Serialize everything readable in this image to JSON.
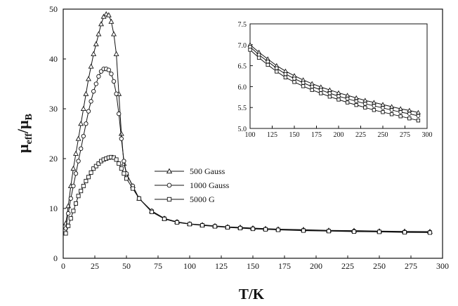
{
  "chart_data": [
    {
      "type": "line",
      "xlabel": "T/K",
      "ylabel_main": "μ",
      "ylabel_sub1": "eff",
      "ylabel_sep": "/μ",
      "ylabel_sub2": "B",
      "xlim": [
        0,
        300
      ],
      "ylim": [
        0,
        50
      ],
      "xticks": [
        "0",
        "25",
        "50",
        "75",
        "100",
        "125",
        "150",
        "175",
        "200",
        "225",
        "250",
        "275",
        "300"
      ],
      "yticks": [
        "0",
        "10",
        "20",
        "30",
        "40",
        "50"
      ],
      "series": [
        {
          "name": "500 Gauss",
          "marker": "triangle",
          "points": [
            [
              2,
              7
            ],
            [
              4,
              10.5
            ],
            [
              6,
              14.5
            ],
            [
              8,
              18
            ],
            [
              10,
              21
            ],
            [
              12,
              24
            ],
            [
              14,
              27
            ],
            [
              16,
              30
            ],
            [
              18,
              33
            ],
            [
              20,
              36
            ],
            [
              22,
              38.5
            ],
            [
              24,
              41
            ],
            [
              26,
              43
            ],
            [
              28,
              45
            ],
            [
              30,
              47
            ],
            [
              32,
              48.5
            ],
            [
              34,
              49
            ],
            [
              36,
              48.8
            ],
            [
              38,
              47.5
            ],
            [
              40,
              45
            ],
            [
              42,
              41
            ],
            [
              44,
              33
            ],
            [
              46,
              25
            ],
            [
              48,
              19
            ],
            [
              50,
              17
            ],
            [
              55,
              14.5
            ],
            [
              60,
              12
            ],
            [
              70,
              9.5
            ],
            [
              80,
              8
            ],
            [
              90,
              7.3
            ],
            [
              100,
              6.9
            ],
            [
              110,
              6.7
            ],
            [
              120,
              6.5
            ],
            [
              130,
              6.3
            ],
            [
              140,
              6.2
            ],
            [
              150,
              6.05
            ],
            [
              160,
              5.95
            ],
            [
              170,
              5.85
            ],
            [
              190,
              5.75
            ],
            [
              210,
              5.6
            ],
            [
              230,
              5.55
            ],
            [
              250,
              5.45
            ],
            [
              270,
              5.4
            ],
            [
              290,
              5.35
            ]
          ]
        },
        {
          "name": "1000 Gauss",
          "marker": "circle",
          "points": [
            [
              2,
              6
            ],
            [
              4,
              9
            ],
            [
              6,
              12
            ],
            [
              8,
              14.5
            ],
            [
              10,
              17
            ],
            [
              12,
              19.5
            ],
            [
              14,
              22
            ],
            [
              16,
              24.5
            ],
            [
              18,
              27
            ],
            [
              20,
              29.5
            ],
            [
              22,
              31.5
            ],
            [
              24,
              33.5
            ],
            [
              26,
              35
            ],
            [
              28,
              36.5
            ],
            [
              30,
              37.5
            ],
            [
              32,
              38
            ],
            [
              34,
              38
            ],
            [
              36,
              37.8
            ],
            [
              38,
              37
            ],
            [
              40,
              35.5
            ],
            [
              42,
              33
            ],
            [
              44,
              29
            ],
            [
              46,
              24
            ],
            [
              48,
              19.5
            ],
            [
              50,
              17
            ],
            [
              55,
              14.5
            ],
            [
              60,
              12
            ],
            [
              70,
              9.5
            ],
            [
              80,
              8
            ],
            [
              90,
              7.3
            ],
            [
              100,
              6.9
            ],
            [
              110,
              6.65
            ],
            [
              120,
              6.45
            ],
            [
              130,
              6.25
            ],
            [
              140,
              6.1
            ],
            [
              150,
              5.95
            ],
            [
              160,
              5.85
            ],
            [
              170,
              5.75
            ],
            [
              190,
              5.65
            ],
            [
              210,
              5.5
            ],
            [
              230,
              5.45
            ],
            [
              250,
              5.35
            ],
            [
              270,
              5.3
            ],
            [
              290,
              5.25
            ]
          ]
        },
        {
          "name": "5000 G",
          "marker": "square",
          "points": [
            [
              2,
              5
            ],
            [
              4,
              6.5
            ],
            [
              6,
              8
            ],
            [
              8,
              9.5
            ],
            [
              10,
              11
            ],
            [
              12,
              12.5
            ],
            [
              14,
              13.5
            ],
            [
              16,
              14.5
            ],
            [
              18,
              15.5
            ],
            [
              20,
              16.3
            ],
            [
              22,
              17.2
            ],
            [
              24,
              18
            ],
            [
              26,
              18.5
            ],
            [
              28,
              19
            ],
            [
              30,
              19.5
            ],
            [
              32,
              19.8
            ],
            [
              34,
              20
            ],
            [
              36,
              20.2
            ],
            [
              38,
              20.3
            ],
            [
              40,
              20.2
            ],
            [
              42,
              19.8
            ],
            [
              44,
              19
            ],
            [
              46,
              18
            ],
            [
              48,
              17
            ],
            [
              50,
              16
            ],
            [
              55,
              14
            ],
            [
              60,
              12
            ],
            [
              70,
              9.3
            ],
            [
              80,
              7.9
            ],
            [
              90,
              7.2
            ],
            [
              100,
              6.85
            ],
            [
              110,
              6.6
            ],
            [
              120,
              6.4
            ],
            [
              130,
              6.2
            ],
            [
              140,
              6.05
            ],
            [
              150,
              5.9
            ],
            [
              160,
              5.8
            ],
            [
              170,
              5.7
            ],
            [
              190,
              5.55
            ],
            [
              210,
              5.45
            ],
            [
              230,
              5.35
            ],
            [
              250,
              5.3
            ],
            [
              270,
              5.2
            ],
            [
              290,
              5.15
            ]
          ]
        }
      ],
      "legend_position": "center"
    },
    {
      "type": "line",
      "role": "inset",
      "legend_position": "top-right",
      "xlim": [
        100,
        300
      ],
      "ylim": [
        5.0,
        7.5
      ],
      "xticks": [
        "100",
        "125",
        "150",
        "175",
        "200",
        "225",
        "250",
        "275",
        "300"
      ],
      "yticks": [
        "5.0",
        "5.5",
        "6.0",
        "6.5",
        "7.0",
        "7.5"
      ],
      "series": [
        {
          "name": "500 Gauss",
          "marker": "triangle",
          "points": [
            [
              100,
              7.0
            ],
            [
              110,
              6.82
            ],
            [
              120,
              6.66
            ],
            [
              130,
              6.5
            ],
            [
              140,
              6.37
            ],
            [
              150,
              6.26
            ],
            [
              160,
              6.16
            ],
            [
              170,
              6.07
            ],
            [
              180,
              5.99
            ],
            [
              190,
              5.92
            ],
            [
              200,
              5.85
            ],
            [
              210,
              5.79
            ],
            [
              220,
              5.73
            ],
            [
              230,
              5.67
            ],
            [
              240,
              5.62
            ],
            [
              250,
              5.57
            ],
            [
              260,
              5.52
            ],
            [
              270,
              5.47
            ],
            [
              280,
              5.43
            ],
            [
              290,
              5.38
            ]
          ]
        },
        {
          "name": "1000 Gauss",
          "marker": "circle",
          "points": [
            [
              100,
              6.95
            ],
            [
              110,
              6.76
            ],
            [
              120,
              6.6
            ],
            [
              130,
              6.44
            ],
            [
              140,
              6.3
            ],
            [
              150,
              6.19
            ],
            [
              160,
              6.09
            ],
            [
              170,
              6.0
            ],
            [
              180,
              5.92
            ],
            [
              190,
              5.84
            ],
            [
              200,
              5.77
            ],
            [
              210,
              5.71
            ],
            [
              220,
              5.65
            ],
            [
              230,
              5.59
            ],
            [
              240,
              5.54
            ],
            [
              250,
              5.49
            ],
            [
              260,
              5.44
            ],
            [
              270,
              5.39
            ],
            [
              280,
              5.35
            ],
            [
              290,
              5.3
            ]
          ]
        },
        {
          "name": "5000 G",
          "marker": "square",
          "points": [
            [
              100,
              6.88
            ],
            [
              110,
              6.69
            ],
            [
              120,
              6.52
            ],
            [
              130,
              6.36
            ],
            [
              140,
              6.22
            ],
            [
              150,
              6.11
            ],
            [
              160,
              6.01
            ],
            [
              170,
              5.92
            ],
            [
              180,
              5.84
            ],
            [
              190,
              5.76
            ],
            [
              200,
              5.69
            ],
            [
              210,
              5.62
            ],
            [
              220,
              5.56
            ],
            [
              230,
              5.5
            ],
            [
              240,
              5.44
            ],
            [
              250,
              5.39
            ],
            [
              260,
              5.34
            ],
            [
              270,
              5.29
            ],
            [
              280,
              5.24
            ],
            [
              290,
              5.19
            ]
          ]
        }
      ]
    }
  ]
}
